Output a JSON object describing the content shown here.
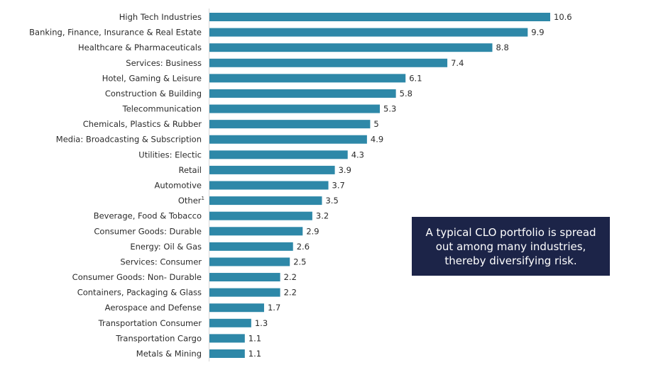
{
  "chart_data": {
    "type": "bar",
    "orientation": "horizontal",
    "categories": [
      "High Tech Industries",
      "Banking, Finance, Insurance & Real Estate",
      "Healthcare & Pharmaceuticals",
      "Services: Business",
      "Hotel, Gaming & Leisure",
      "Construction & Building",
      "Telecommunication",
      "Chemicals, Plastics & Rubber",
      "Media: Broadcasting & Subscription",
      "Utilities: Electic",
      "Retail",
      "Automotive",
      "Other",
      "Beverage, Food & Tobacco",
      "Consumer Goods: Durable",
      "Energy: Oil & Gas",
      "Services: Consumer",
      "Consumer Goods: Non- Durable",
      "Containers, Packaging & Glass",
      "Aerospace and Defense",
      "Transportation Consumer",
      "Transportation Cargo",
      "Metals & Mining"
    ],
    "category_footnotes": {
      "Other": "1"
    },
    "values": [
      10.6,
      9.9,
      8.8,
      7.4,
      6.1,
      5.8,
      5.3,
      5,
      4.9,
      4.3,
      3.9,
      3.7,
      3.5,
      3.2,
      2.9,
      2.6,
      2.5,
      2.2,
      2.2,
      1.7,
      1.3,
      1.1,
      1.1
    ],
    "value_labels": [
      "10.6",
      "9.9",
      "8.8",
      "7.4",
      "6.1",
      "5.8",
      "5.3",
      "5",
      "4.9",
      "4.3",
      "3.9",
      "3.7",
      "3.5",
      "3.2",
      "2.9",
      "2.6",
      "2.5",
      "2.2",
      "2.2",
      "1.7",
      "1.3",
      "1.1",
      "1.1"
    ],
    "title": "",
    "xlabel": "",
    "ylabel": "",
    "xlim": [
      0,
      10.6
    ],
    "grid": false,
    "bar_color": "#2e88a8"
  },
  "callout": {
    "text": "A typical CLO portfolio is spread out among many industries, thereby diversifying risk.",
    "background": "#1c2448"
  }
}
